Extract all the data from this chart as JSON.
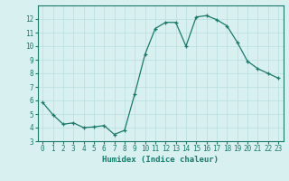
{
  "x": [
    0,
    1,
    2,
    3,
    4,
    5,
    6,
    7,
    8,
    9,
    10,
    11,
    12,
    13,
    14,
    15,
    16,
    17,
    18,
    19,
    20,
    21,
    22,
    23
  ],
  "y": [
    5.85,
    4.95,
    4.25,
    4.35,
    4.0,
    4.05,
    4.15,
    3.5,
    3.8,
    6.5,
    9.4,
    11.3,
    11.75,
    11.75,
    10.0,
    12.15,
    12.25,
    11.95,
    11.5,
    10.3,
    8.9,
    8.35,
    8.0,
    7.65
  ],
  "line_color": "#1a7a6a",
  "marker": "+",
  "bg_color": "#d9f0f0",
  "grid_color": "#b8dede",
  "xlabel": "Humidex (Indice chaleur)",
  "xlim": [
    -0.5,
    23.5
  ],
  "ylim": [
    3,
    13
  ],
  "yticks": [
    3,
    4,
    5,
    6,
    7,
    8,
    9,
    10,
    11,
    12
  ],
  "xticks": [
    0,
    1,
    2,
    3,
    4,
    5,
    6,
    7,
    8,
    9,
    10,
    11,
    12,
    13,
    14,
    15,
    16,
    17,
    18,
    19,
    20,
    21,
    22,
    23
  ],
  "axis_color": "#1a7a6a",
  "tick_color": "#1a7a6a",
  "label_fontsize": 6.5,
  "tick_fontsize": 5.5
}
